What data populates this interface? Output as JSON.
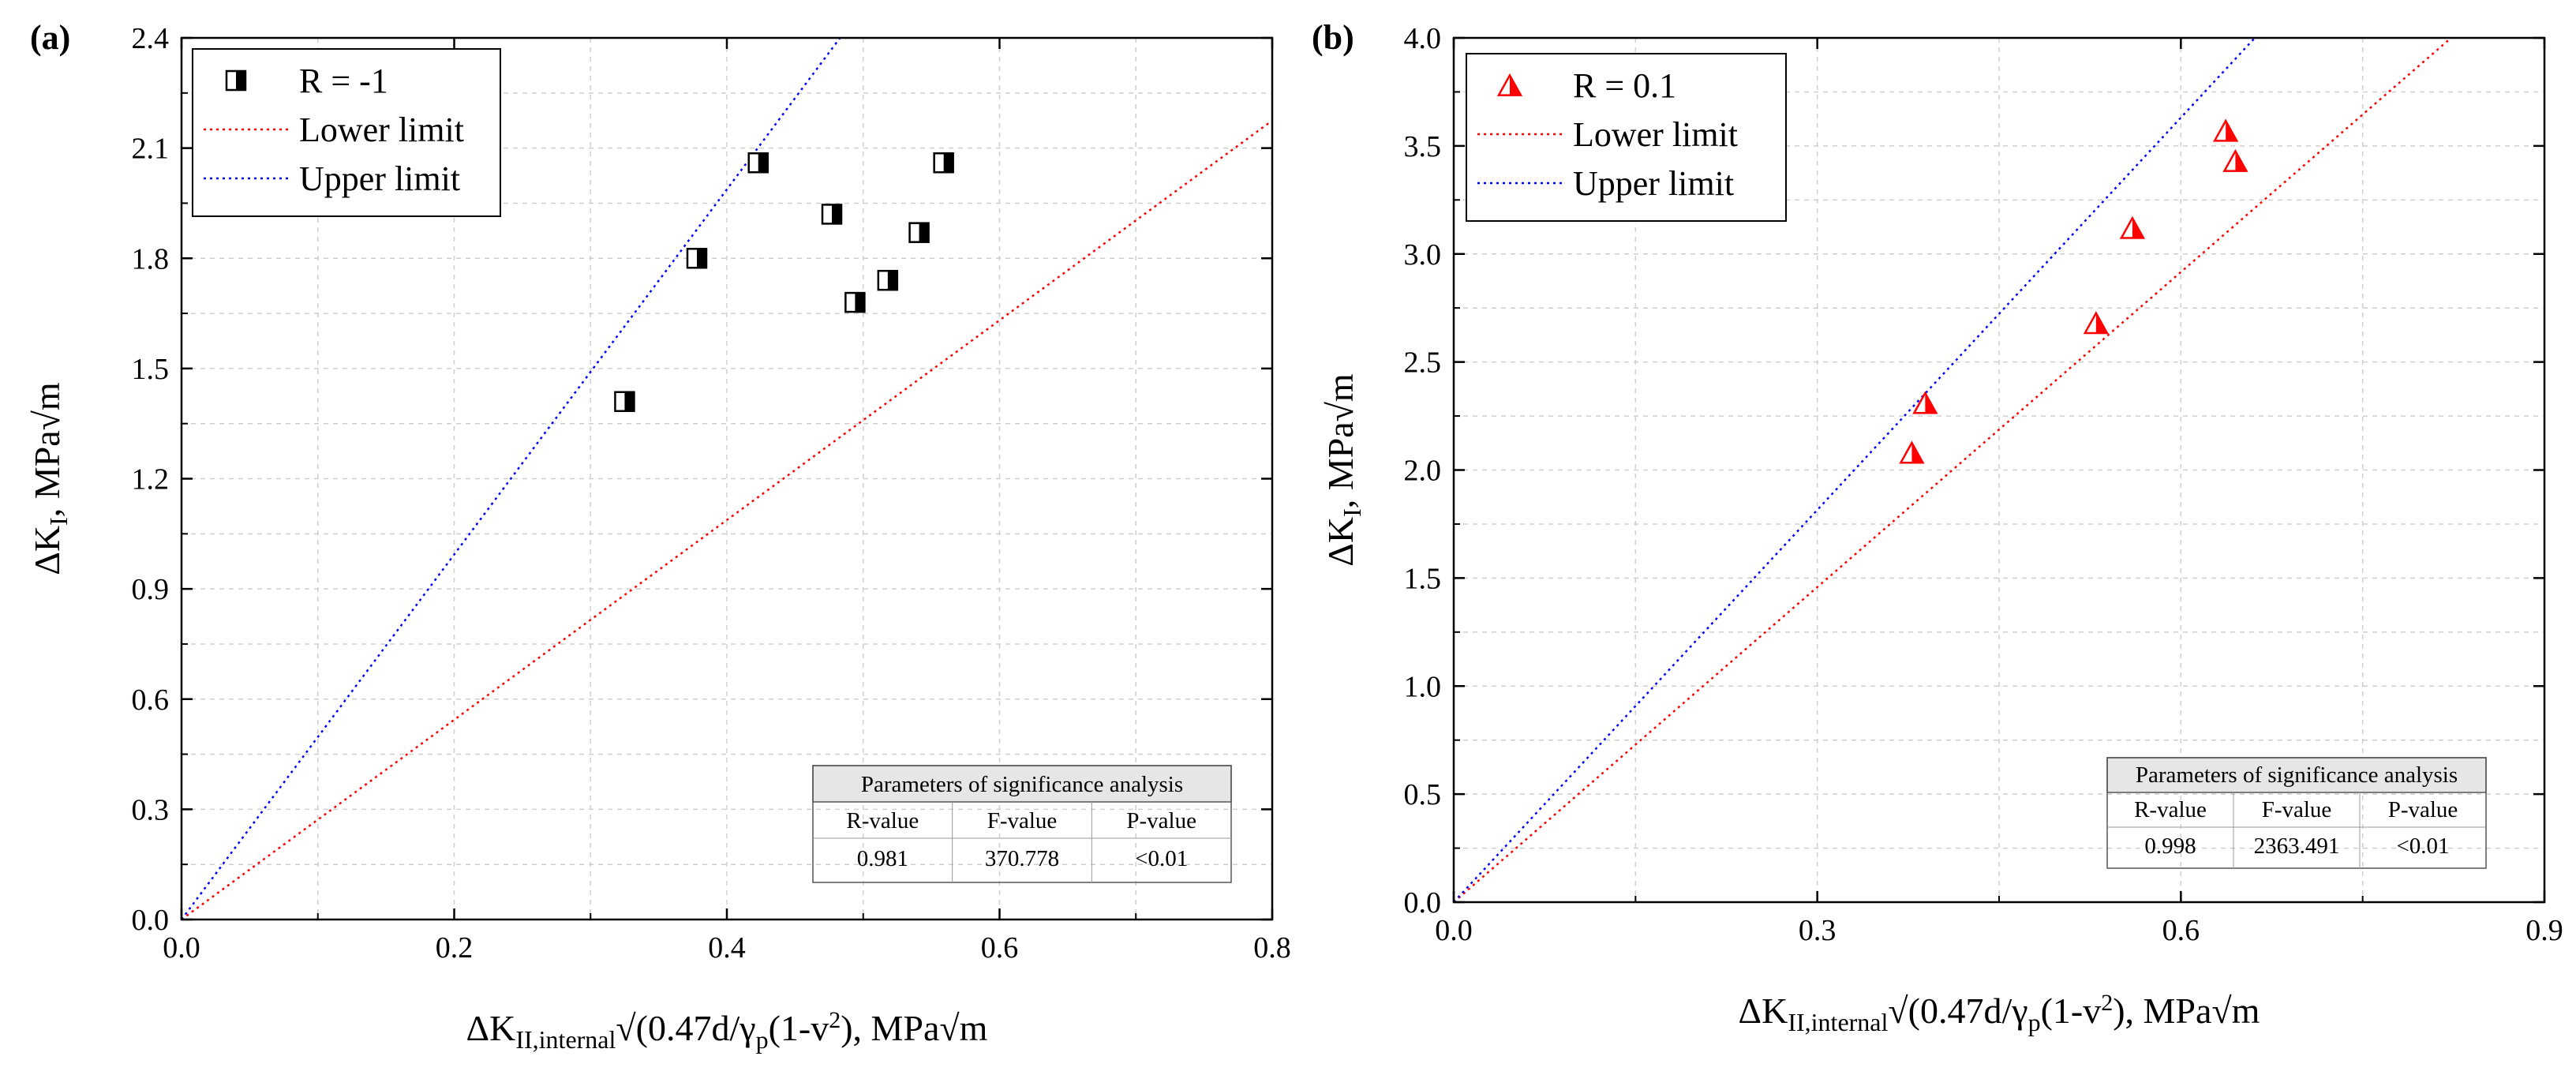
{
  "chart_data": [
    {
      "type": "scatter",
      "panel_label": "(a)",
      "xlabel": "ΔK_II,internal√(0.47d/γ_p(1-v²), MPa√m",
      "ylabel": "ΔK_I, MPa√m",
      "xlim": [
        0.0,
        0.8
      ],
      "ylim": [
        0.0,
        2.4
      ],
      "xticks": [
        "0.0",
        "0.2",
        "0.4",
        "0.6",
        "0.8"
      ],
      "yticks": [
        "0.0",
        "0.3",
        "0.6",
        "0.9",
        "1.2",
        "1.5",
        "1.8",
        "2.1",
        "2.4"
      ],
      "grid": true,
      "legend_position": "top-left",
      "series": [
        {
          "name": "R = -1",
          "kind": "points",
          "marker": "half-filled-square",
          "color": "#000000",
          "x": [
            0.325,
            0.378,
            0.423,
            0.477,
            0.494,
            0.518,
            0.541,
            0.559
          ],
          "y": [
            1.41,
            1.8,
            2.06,
            1.92,
            1.68,
            1.74,
            1.87,
            2.06
          ]
        },
        {
          "name": "Lower limit",
          "kind": "line",
          "style": "dotted",
          "color": "#ff0000",
          "x": [
            0.0,
            0.8
          ],
          "y": [
            0.0,
            2.175
          ]
        },
        {
          "name": "Upper limit",
          "kind": "line",
          "style": "dotted",
          "color": "#0000ff",
          "x": [
            0.0,
            0.483
          ],
          "y": [
            0.0,
            2.4
          ]
        }
      ],
      "table": {
        "title": "Parameters of significance analysis",
        "headers": [
          "R-value",
          "F-value",
          "P-value"
        ],
        "values": [
          "0.981",
          "370.778",
          "<0.01"
        ]
      }
    },
    {
      "type": "scatter",
      "panel_label": "(b)",
      "xlabel": "ΔK_II,internal√(0.47d/γ_p(1-v²), MPa√m",
      "ylabel": "ΔK_I, MPa√m",
      "xlim": [
        0.0,
        0.9
      ],
      "ylim": [
        0.0,
        4.0
      ],
      "xticks": [
        "0.0",
        "0.3",
        "0.6",
        "0.9"
      ],
      "yticks": [
        "0.0",
        "0.5",
        "1.0",
        "1.5",
        "2.0",
        "2.5",
        "3.0",
        "3.5",
        "4.0"
      ],
      "grid": true,
      "legend_position": "top-left",
      "series": [
        {
          "name": "R = 0.1",
          "kind": "points",
          "marker": "half-filled-triangle",
          "color": "#ff0000",
          "x": [
            0.378,
            0.389,
            0.53,
            0.56,
            0.637,
            0.645
          ],
          "y": [
            2.08,
            2.31,
            2.68,
            3.12,
            3.57,
            3.43
          ]
        },
        {
          "name": "Lower limit",
          "kind": "line",
          "style": "dotted",
          "color": "#ff0000",
          "x": [
            0.0,
            0.823
          ],
          "y": [
            0.0,
            4.0
          ]
        },
        {
          "name": "Upper limit",
          "kind": "line",
          "style": "dotted",
          "color": "#0000ff",
          "x": [
            0.0,
            0.661
          ],
          "y": [
            0.0,
            4.0
          ]
        }
      ],
      "table": {
        "title": "Parameters of significance analysis",
        "headers": [
          "R-value",
          "F-value",
          "P-value"
        ],
        "values": [
          "0.998",
          "2363.491",
          "<0.01"
        ]
      }
    }
  ]
}
